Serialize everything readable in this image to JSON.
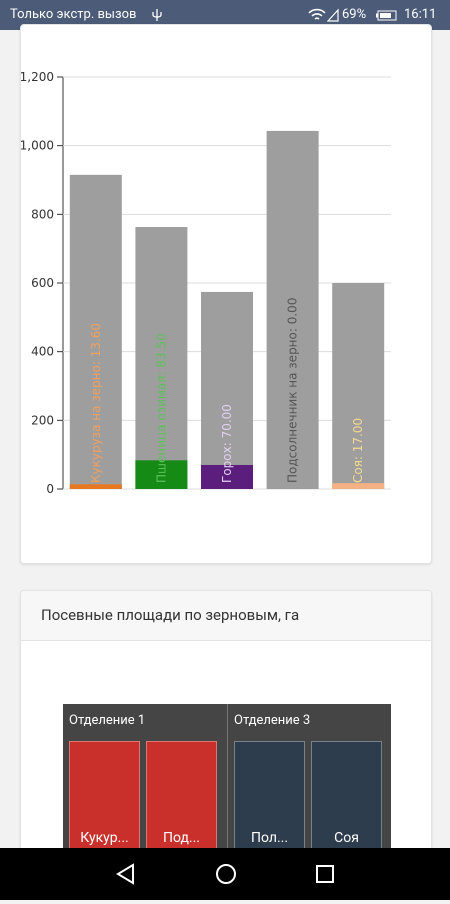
{
  "status_bar": {
    "carrier": "Только экстр. вызов",
    "battery": "69%",
    "time": "16:11"
  },
  "chart_data": {
    "type": "bar",
    "categories": [
      "Кукуруза на зерно",
      "Пшеница озимая",
      "Горох",
      "Подсолнечник на зерно",
      "Соя"
    ],
    "series": [
      {
        "color": "#9e9e9e",
        "values": [
          915,
          763,
          574,
          1043,
          600
        ]
      },
      {
        "colors": [
          "#e87722",
          "#158a15",
          "#5b1e7c",
          "#9e9e9e",
          "#f4b183"
        ],
        "label_colors": [
          "#f0a060",
          "#5cc05c",
          "#e0d0f0",
          "#555555",
          "#f7d890"
        ],
        "values": [
          13.6,
          83.5,
          70,
          0,
          17
        ],
        "value_labels": [
          "Кукуруза на зерно: 13.60",
          "Пшеница озимая: 83.50",
          "Горох: 70.00",
          "Подсолнечник на зерно: 0.00",
          "Соя: 17.00"
        ]
      }
    ],
    "ylim": [
      0,
      1200
    ],
    "yticks": [
      0,
      200,
      400,
      600,
      800,
      {
        "value": 1000,
        "label": "1,000"
      },
      {
        "value": 1200,
        "label": "1,200"
      }
    ],
    "grid": true
  },
  "card2": {
    "title": "Посевные площади по зерновым, га",
    "treemap": {
      "groups": [
        {
          "label": "Отделение 1",
          "color": "#c9302c",
          "tiles": [
            "Кукур...",
            "Под..."
          ]
        },
        {
          "label": "Отделение 3",
          "color": "#2e3d4d",
          "tiles": [
            "Пол...",
            "Соя"
          ]
        }
      ]
    }
  }
}
